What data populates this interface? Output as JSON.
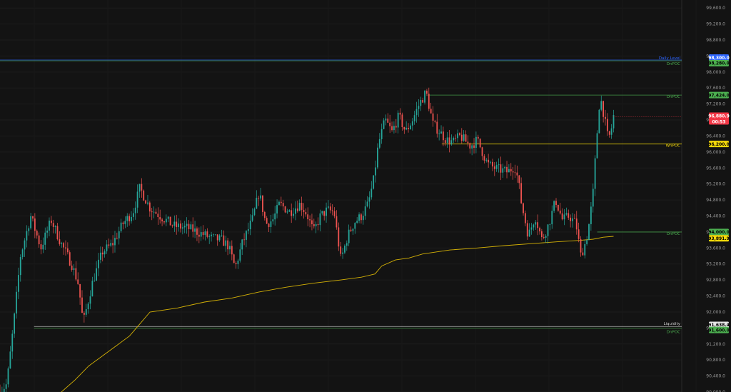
{
  "chart_data": {
    "type": "candlestick",
    "y_ticks": [
      "90,000.0",
      "90,400.0",
      "90,800.0",
      "91,200.0",
      "91,600.0",
      "92,000.0",
      "92,400.0",
      "92,800.0",
      "93,200.0",
      "93,600.0",
      "94,000.0",
      "94,400.0",
      "94,800.0",
      "95,200.0",
      "95,600.0",
      "96,000.0",
      "96,400.0",
      "96,800.0",
      "97,200.0",
      "97,600.0",
      "98,000.0",
      "98,400.0",
      "98,800.0",
      "99,200.0",
      "99,600.0"
    ],
    "ylim": [
      90000,
      99800
    ],
    "levels": [
      {
        "label": "Daily Level",
        "value": 98300,
        "tag": "98,300.0",
        "color": "#2e66ff",
        "text_color": "#2e66ff",
        "start": 0
      },
      {
        "label": "DnPOC",
        "value": 98280,
        "tag": "98,280.0",
        "color": "#4caf50",
        "text_color": "#4caf50",
        "start": 0
      },
      {
        "label": "DnPOC",
        "value": 97424,
        "tag": "97,424.0",
        "color": "#4caf50",
        "text_color": "#4caf50",
        "start": 0.627
      },
      {
        "label": "WnPOC",
        "value": 96200,
        "tag": "96,200.0",
        "color": "#f5d90a",
        "text_color": "#f5d90a",
        "start": 0.648
      },
      {
        "label": "DnPOC",
        "value": 94000,
        "tag": "94,000.0",
        "color": "#4caf50",
        "text_color": "#4caf50",
        "start": 0.876
      },
      {
        "label": "Liquidity",
        "value": 91638.4,
        "tag": "91,638.4",
        "color": "#cfcfcf",
        "text_color": "#cfcfcf",
        "start": 0.05
      },
      {
        "label": "DnPOC",
        "value": 91600,
        "tag": "91,600.0",
        "color": "#4caf50",
        "text_color": "#4caf50",
        "start": 0.05
      }
    ],
    "current_price": {
      "value": 96880.9,
      "tag": "96,880.9",
      "countdown": "00:53",
      "color": "#f23645"
    },
    "vwap_tag": {
      "value": 93891.9,
      "tag": "93,891.9",
      "color": "#f5d90a"
    },
    "price_path": [
      [
        0.0,
        90000
      ],
      [
        0.01,
        90200
      ],
      [
        0.02,
        91700
      ],
      [
        0.03,
        93400
      ],
      [
        0.045,
        94400
      ],
      [
        0.06,
        93600
      ],
      [
        0.075,
        94300
      ],
      [
        0.09,
        93700
      ],
      [
        0.105,
        93200
      ],
      [
        0.115,
        92700
      ],
      [
        0.122,
        91720
      ],
      [
        0.135,
        92700
      ],
      [
        0.15,
        93500
      ],
      [
        0.165,
        93700
      ],
      [
        0.18,
        94200
      ],
      [
        0.195,
        94500
      ],
      [
        0.205,
        95100
      ],
      [
        0.22,
        94600
      ],
      [
        0.235,
        94400
      ],
      [
        0.255,
        94150
      ],
      [
        0.275,
        94100
      ],
      [
        0.29,
        94000
      ],
      [
        0.31,
        93850
      ],
      [
        0.325,
        93800
      ],
      [
        0.335,
        93650
      ],
      [
        0.345,
        93100
      ],
      [
        0.355,
        93700
      ],
      [
        0.37,
        94300
      ],
      [
        0.38,
        95000
      ],
      [
        0.39,
        94200
      ],
      [
        0.4,
        94300
      ],
      [
        0.41,
        94700
      ],
      [
        0.425,
        94500
      ],
      [
        0.44,
        94700
      ],
      [
        0.45,
        94450
      ],
      [
        0.46,
        94000
      ],
      [
        0.47,
        94400
      ],
      [
        0.48,
        94550
      ],
      [
        0.49,
        94500
      ],
      [
        0.5,
        93300
      ],
      [
        0.51,
        93900
      ],
      [
        0.52,
        94250
      ],
      [
        0.53,
        94400
      ],
      [
        0.54,
        94700
      ],
      [
        0.548,
        95300
      ],
      [
        0.555,
        96200
      ],
      [
        0.565,
        96800
      ],
      [
        0.575,
        96500
      ],
      [
        0.585,
        96900
      ],
      [
        0.595,
        96500
      ],
      [
        0.605,
        96800
      ],
      [
        0.615,
        97200
      ],
      [
        0.625,
        97500
      ],
      [
        0.635,
        96700
      ],
      [
        0.645,
        96500
      ],
      [
        0.655,
        96300
      ],
      [
        0.665,
        96250
      ],
      [
        0.675,
        96400
      ],
      [
        0.69,
        96150
      ],
      [
        0.7,
        96300
      ],
      [
        0.715,
        95700
      ],
      [
        0.725,
        95600
      ],
      [
        0.735,
        95550
      ],
      [
        0.745,
        95500
      ],
      [
        0.755,
        95650
      ],
      [
        0.76,
        95300
      ],
      [
        0.765,
        94700
      ],
      [
        0.775,
        93900
      ],
      [
        0.785,
        94400
      ],
      [
        0.795,
        93800
      ],
      [
        0.805,
        94200
      ],
      [
        0.815,
        94800
      ],
      [
        0.825,
        94300
      ],
      [
        0.835,
        94400
      ],
      [
        0.845,
        94200
      ],
      [
        0.852,
        93400
      ],
      [
        0.86,
        93800
      ],
      [
        0.865,
        94300
      ],
      [
        0.87,
        95000
      ],
      [
        0.875,
        96300
      ],
      [
        0.88,
        97400
      ],
      [
        0.884,
        97100
      ],
      [
        0.888,
        96700
      ],
      [
        0.892,
        96300
      ],
      [
        0.896,
        96500
      ],
      [
        0.9,
        96900
      ]
    ],
    "vwap_path": [
      [
        0.09,
        90000
      ],
      [
        0.11,
        90300
      ],
      [
        0.13,
        90650
      ],
      [
        0.15,
        90900
      ],
      [
        0.17,
        91150
      ],
      [
        0.19,
        91400
      ],
      [
        0.205,
        91700
      ],
      [
        0.22,
        92000
      ],
      [
        0.26,
        92100
      ],
      [
        0.3,
        92250
      ],
      [
        0.34,
        92350
      ],
      [
        0.38,
        92500
      ],
      [
        0.42,
        92620
      ],
      [
        0.46,
        92720
      ],
      [
        0.5,
        92800
      ],
      [
        0.53,
        92870
      ],
      [
        0.55,
        92950
      ],
      [
        0.56,
        93150
      ],
      [
        0.58,
        93300
      ],
      [
        0.6,
        93350
      ],
      [
        0.62,
        93450
      ],
      [
        0.66,
        93550
      ],
      [
        0.7,
        93600
      ],
      [
        0.74,
        93660
      ],
      [
        0.78,
        93710
      ],
      [
        0.82,
        93760
      ],
      [
        0.85,
        93790
      ],
      [
        0.87,
        93820
      ],
      [
        0.885,
        93870
      ],
      [
        0.9,
        93892
      ]
    ]
  }
}
